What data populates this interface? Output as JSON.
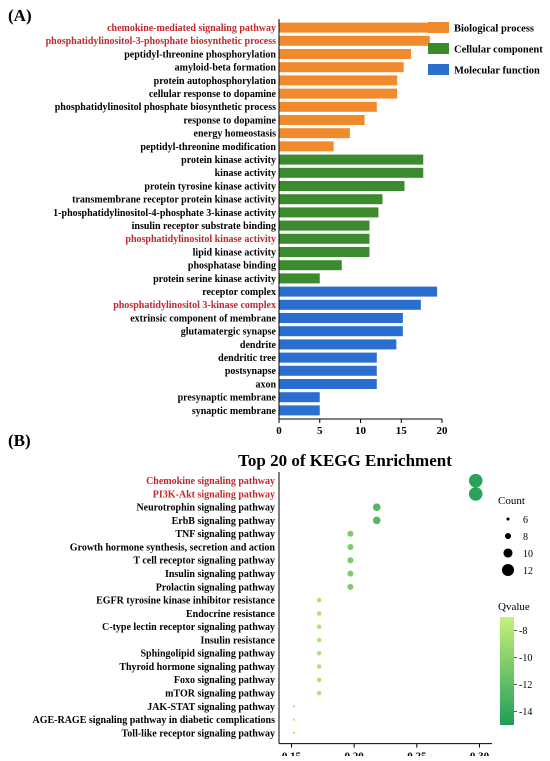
{
  "panels": {
    "a_label": "(A)",
    "b_label": "(B)"
  },
  "chart_data": [
    {
      "type": "bar",
      "orientation": "horizontal",
      "title": "",
      "xlabel": "",
      "ylabel": "",
      "xlim": [
        0,
        20
      ],
      "x_ticks": [
        0,
        5,
        10,
        15,
        20
      ],
      "grid": false,
      "legend_position": "top-right",
      "legend": [
        {
          "name": "Biological process",
          "color": "#f08a2c"
        },
        {
          "name": "Cellular component",
          "color": "#3c8a2e"
        },
        {
          "name": "Molecular function",
          "color": "#2a6fd0"
        }
      ],
      "categories": [
        "chemokine-mediated signaling pathway",
        "phosphatidylinositol-3-phosphate biosynthetic process",
        "peptidyl-threonine phosphorylation",
        "amyloid-beta formation",
        "protein autophosphorylation",
        "cellular response to dopamine",
        "phosphatidylinositol phosphate biosynthetic process",
        "response to dopamine",
        "energy homeostasis",
        "peptidyl-threonine modification",
        "protein kinase activity",
        "kinase activity",
        "protein tyrosine kinase activity",
        "transmembrane receptor protein kinase activity",
        "1-phosphatidylinositol-4-phosphate 3-kinase activity",
        "insulin receptor substrate binding",
        "phosphatidylinositol kinase activity",
        "lipid kinase activity",
        "phosphatase binding",
        "protein serine kinase activity",
        "receptor complex",
        "phosphatidylinositol 3-kinase complex",
        "extrinsic component of membrane",
        "glutamatergic synapse",
        "dendrite",
        "dendritic tree",
        "postsynapse",
        "axon",
        "presynaptic membrane",
        "synaptic membrane"
      ],
      "values": [
        18.5,
        18.5,
        16.2,
        15.3,
        14.5,
        14.5,
        12,
        10.5,
        8.7,
        6.7,
        17.7,
        17.7,
        15.4,
        12.7,
        12.2,
        11.1,
        11.1,
        11.1,
        7.7,
        5,
        19.4,
        17.4,
        15.2,
        15.2,
        14.4,
        12,
        12,
        12,
        5,
        5
      ],
      "series_assignment": [
        "Biological process",
        "Biological process",
        "Biological process",
        "Biological process",
        "Biological process",
        "Biological process",
        "Biological process",
        "Biological process",
        "Biological process",
        "Biological process",
        "Cellular component",
        "Cellular component",
        "Cellular component",
        "Cellular component",
        "Cellular component",
        "Cellular component",
        "Cellular component",
        "Cellular component",
        "Cellular component",
        "Cellular component",
        "Molecular function",
        "Molecular function",
        "Molecular function",
        "Molecular function",
        "Molecular function",
        "Molecular function",
        "Molecular function",
        "Molecular function",
        "Molecular function",
        "Molecular function"
      ],
      "highlighted": [
        "chemokine-mediated signaling pathway",
        "phosphatidylinositol-3-phosphate biosynthetic process",
        "phosphatidylinositol kinase activity",
        "phosphatidylinositol 3-kinase complex"
      ],
      "highlight_color": "#c0282d"
    },
    {
      "type": "scatter",
      "title": "Top 20 of KEGG Enrichment",
      "xlabel": "",
      "ylabel": "",
      "xlim": [
        0.14,
        0.31
      ],
      "x_ticks": [
        "0.15",
        "0.20",
        "0.25",
        "0.30"
      ],
      "grid": false,
      "legend_position": "right",
      "size_legend": {
        "title": "Count",
        "values": [
          6,
          8,
          10,
          12
        ]
      },
      "color_legend": {
        "title": "Qvalue",
        "ticks": [
          -8,
          -10,
          -12,
          -14
        ],
        "range": [
          -15,
          -7
        ],
        "low_color": "#1f9e56",
        "high_color": "#c8f07a"
      },
      "categories": [
        "Chemokine signaling pathway",
        "PI3K-Akt signaling pathway",
        "Neurotrophin signaling pathway",
        "ErbB signaling pathway",
        "TNF signaling pathway",
        "Growth hormone synthesis, secretion and action",
        "T cell receptor signaling pathway",
        "Insulin signaling pathway",
        "Prolactin signaling pathway",
        "EGFR tyrosine kinase inhibitor resistance",
        "Endocrine resistance",
        "C-type lectin receptor signaling pathway",
        "Insulin resistance",
        "Sphingolipid signaling pathway",
        "Thyroid hormone signaling pathway",
        "Foxo signaling pathway",
        "mTOR signaling pathway",
        "JAK-STAT signaling pathway",
        "AGE-RAGE signaling pathway in diabetic complications",
        "Toll-like receptor signaling pathway"
      ],
      "x": [
        0.297,
        0.297,
        0.218,
        0.218,
        0.197,
        0.197,
        0.197,
        0.197,
        0.197,
        0.172,
        0.172,
        0.172,
        0.172,
        0.172,
        0.172,
        0.172,
        0.172,
        0.152,
        0.152,
        0.152
      ],
      "count": [
        13,
        13,
        9,
        9,
        8,
        8,
        8,
        8,
        8,
        7,
        7,
        7,
        7,
        7,
        7,
        7,
        7,
        5.5,
        5.5,
        5.5
      ],
      "qvalue": [
        -14.5,
        -14.5,
        -12.5,
        -12.5,
        -10.5,
        -10.5,
        -10.5,
        -10.5,
        -10.5,
        -8.2,
        -8.2,
        -8.2,
        -8.2,
        -8.2,
        -8.2,
        -8.2,
        -8.2,
        -7.5,
        -7.5,
        -7.5
      ],
      "highlighted": [
        "Chemokine signaling pathway",
        "PI3K-Akt signaling pathway"
      ],
      "highlight_color": "#c0282d"
    }
  ]
}
